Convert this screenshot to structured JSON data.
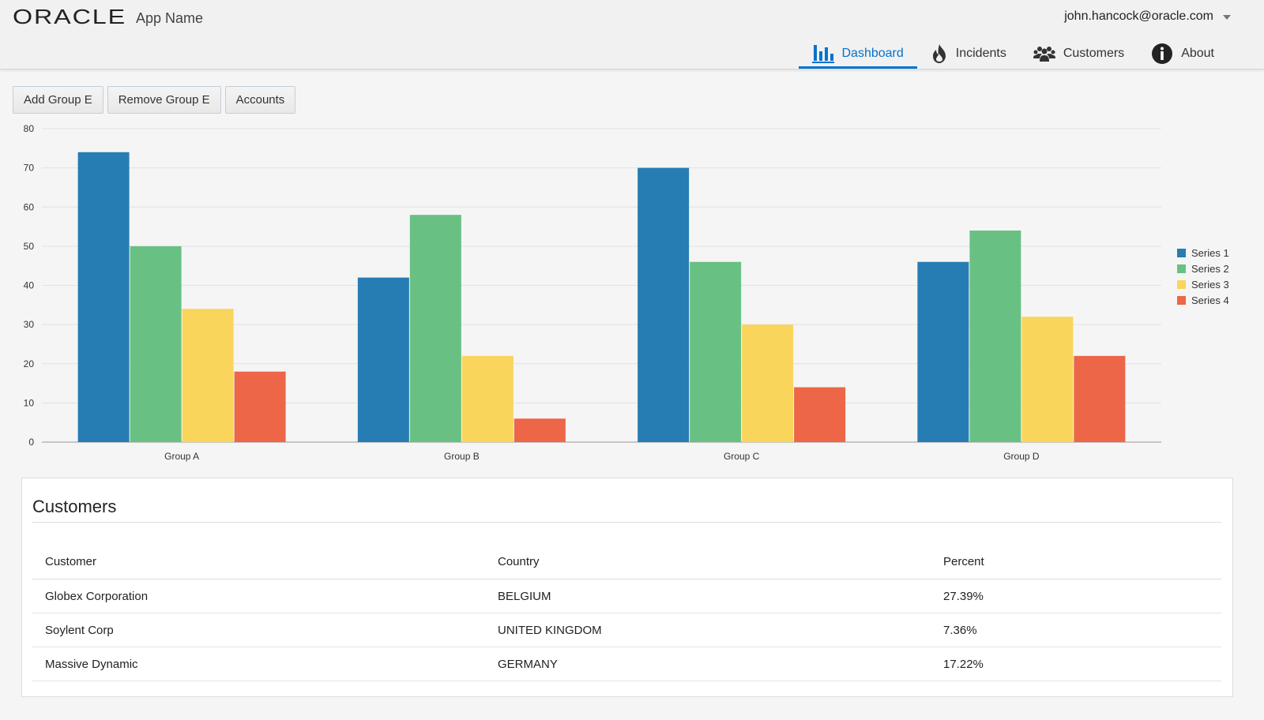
{
  "header": {
    "brand": "ORACLE",
    "app_name": "App Name",
    "user": "john.hancock@oracle.com",
    "nav": [
      {
        "label": "Dashboard",
        "icon": "bar-chart-icon",
        "active": true
      },
      {
        "label": "Incidents",
        "icon": "flame-icon",
        "active": false
      },
      {
        "label": "Customers",
        "icon": "people-icon",
        "active": false
      },
      {
        "label": "About",
        "icon": "info-icon",
        "active": false
      }
    ]
  },
  "toolbar": {
    "add_label": "Add Group E",
    "remove_label": "Remove Group E",
    "accounts_label": "Accounts"
  },
  "colors": {
    "accent": "#0572ce",
    "series": [
      "#267db3",
      "#68c182",
      "#fad55c",
      "#ed6647"
    ]
  },
  "chart_data": {
    "type": "bar",
    "categories": [
      "Group A",
      "Group B",
      "Group C",
      "Group D"
    ],
    "series": [
      {
        "name": "Series 1",
        "values": [
          74,
          42,
          70,
          46
        ]
      },
      {
        "name": "Series 2",
        "values": [
          50,
          58,
          46,
          54
        ]
      },
      {
        "name": "Series 3",
        "values": [
          34,
          22,
          30,
          32
        ]
      },
      {
        "name": "Series 4",
        "values": [
          18,
          6,
          14,
          22
        ]
      }
    ],
    "ylim": [
      0,
      80
    ],
    "yticks": [
      0,
      10,
      20,
      30,
      40,
      50,
      60,
      70,
      80
    ],
    "grid": true,
    "legend": "right"
  },
  "customers": {
    "title": "Customers",
    "columns": [
      "Customer",
      "Country",
      "Percent"
    ],
    "rows": [
      [
        "Globex Corporation",
        "BELGIUM",
        "27.39%"
      ],
      [
        "Soylent Corp",
        "UNITED KINGDOM",
        "7.36%"
      ],
      [
        "Massive Dynamic",
        "GERMANY",
        "17.22%"
      ]
    ]
  }
}
